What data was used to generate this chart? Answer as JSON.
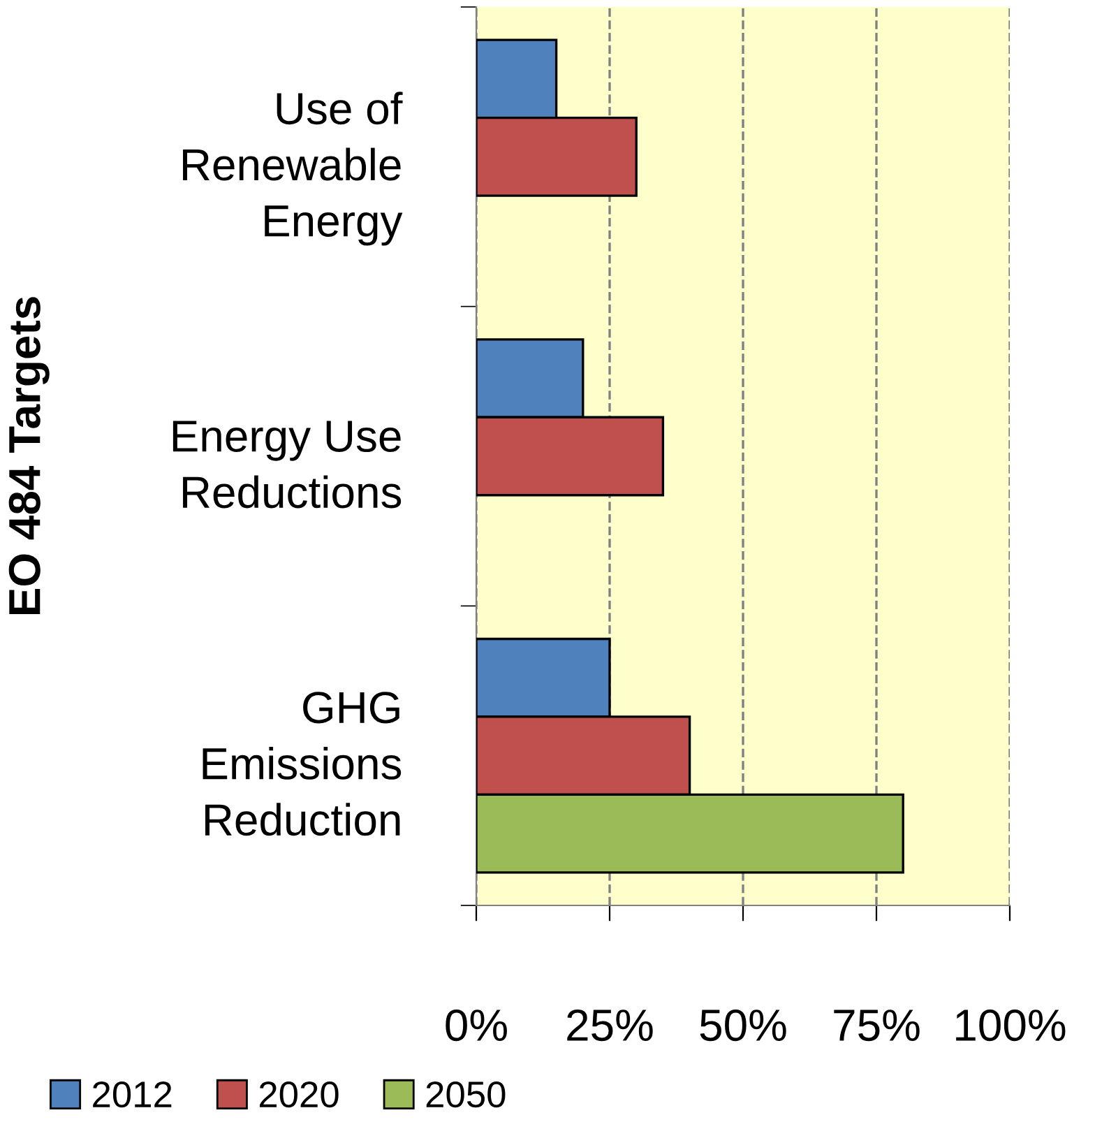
{
  "chart_data": {
    "type": "bar",
    "orientation": "horizontal",
    "ylabel": "EO 484 Targets",
    "categories": [
      "Use of\nRenewable\nEnergy",
      "Energy Use\nReductions",
      "GHG\nEmissions\nReduction"
    ],
    "series": [
      {
        "name": "2012",
        "color": "#4f81bd",
        "values": [
          15,
          20,
          25
        ]
      },
      {
        "name": "2020",
        "color": "#c0504d",
        "values": [
          30,
          35,
          40
        ]
      },
      {
        "name": "2050",
        "color": "#9bbb59",
        "values": [
          null,
          null,
          80
        ]
      }
    ],
    "xlim": [
      0,
      100
    ],
    "xticks": [
      {
        "value": 0,
        "label": "0%"
      },
      {
        "value": 25,
        "label": "25%"
      },
      {
        "value": 50,
        "label": "50%"
      },
      {
        "value": 75,
        "label": "75%"
      },
      {
        "value": 100,
        "label": "100%"
      }
    ],
    "grid": "x",
    "legend": "bottom"
  }
}
